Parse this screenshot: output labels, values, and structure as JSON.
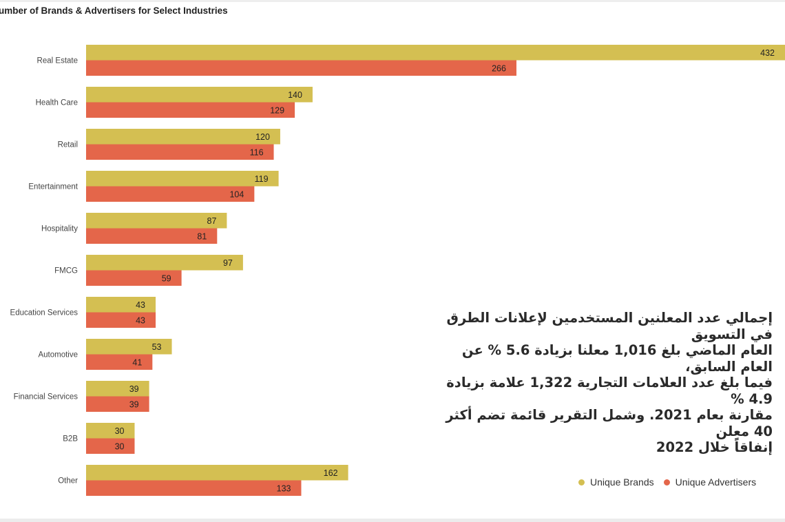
{
  "chart_data": {
    "type": "bar",
    "orientation": "horizontal",
    "title": "umber of Brands & Advertisers for Select Industries",
    "categories": [
      "Real Estate",
      "Health Care",
      "Retail",
      "Entertainment",
      "Hospitality",
      "FMCG",
      "Education Services",
      "Automotive",
      "Financial Services",
      "B2B",
      "Other"
    ],
    "series": [
      {
        "name": "Unique Brands",
        "color": "#d4bf52",
        "values": [
          432,
          140,
          120,
          119,
          87,
          97,
          43,
          53,
          39,
          30,
          162
        ]
      },
      {
        "name": "Unique Advertisers",
        "color": "#e4664a",
        "values": [
          266,
          129,
          116,
          104,
          81,
          59,
          43,
          41,
          39,
          30,
          133
        ]
      }
    ],
    "xlim": [
      0,
      432
    ],
    "grid": false,
    "data_labels": true,
    "legend_placement": "bottom-right"
  },
  "note": {
    "lines": [
      "إجمالي عدد المعلنين المستخدمين لإعلانات الطرق في التسويق",
      "العام الماضي بلغ 1,016 معلنا بزيادة 5.6 % عن العام السابق،",
      "فيما بلغ عدد العلامات التجارية 1,322 علامة بزيادة 4.9 %",
      "مقارنة بعام 2021. وشمل التقرير قائمة تضم أكثر 40 معلن",
      "إنفاقاً خلال 2022"
    ]
  }
}
